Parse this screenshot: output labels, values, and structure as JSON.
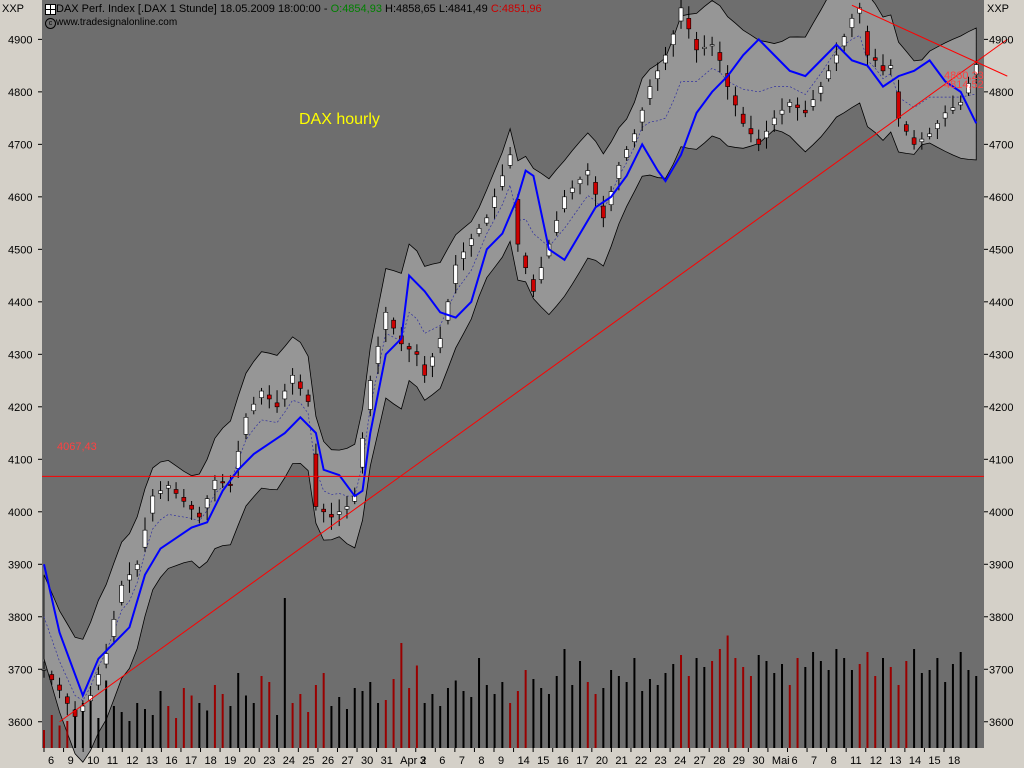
{
  "header": {
    "title": "DAX Perf. Index [.DAX  1 Stunde] 18.05.2009 18:00:00 - ",
    "open": "O:4854,93",
    "high": "H:4858,65",
    "low": "L:4841,49",
    "close": "C:4851,96",
    "source": "www.tradesignalonline.com",
    "source_icon": "copyright-icon",
    "axis_tag_left": "XXP",
    "axis_tag_right": "XXP"
  },
  "annotations": {
    "title_text": "DAX hourly",
    "level_label": "4067,43",
    "trend_label_1": "4860,23",
    "trend_label_2": "4814,52"
  },
  "colors": {
    "plot_background": "#6e6e6e",
    "band_fill": "#969696",
    "up_candle": "#ffffff",
    "down_candle": "#cc0000",
    "moving_average": "#0000ff",
    "trendline": "#ff0000",
    "annotation_text": "#ffff00"
  },
  "chart_data": {
    "type": "candlestick",
    "instrument": "DAX Perf. Index",
    "interval": "1 Stunde",
    "ylim": [
      3550,
      4975
    ],
    "yticks": [
      3600,
      3700,
      3800,
      3900,
      4000,
      4100,
      4200,
      4300,
      4400,
      4500,
      4600,
      4700,
      4800,
      4900
    ],
    "x_labels": [
      "6",
      "9",
      "10",
      "11",
      "12",
      "13",
      "16",
      "17",
      "18",
      "19",
      "20",
      "23",
      "24",
      "25",
      "26",
      "27",
      "30",
      "31",
      "Apr 2",
      "3",
      "6",
      "7",
      "8",
      "9",
      "14",
      "15",
      "16",
      "17",
      "20",
      "21",
      "22",
      "23",
      "24",
      "27",
      "28",
      "29",
      "30",
      "Mai",
      "6",
      "7",
      "8",
      "11",
      "12",
      "13",
      "14",
      "15",
      "18"
    ],
    "grid": false,
    "indicators": [
      "Bollinger bands",
      "moving average",
      "volume"
    ],
    "close_path": [
      [
        0,
        3700
      ],
      [
        2,
        3660
      ],
      [
        4,
        3610
      ],
      [
        6,
        3650
      ],
      [
        8,
        3730
      ],
      [
        10,
        3860
      ],
      [
        12,
        3900
      ],
      [
        14,
        4030
      ],
      [
        16,
        4050
      ],
      [
        18,
        4020
      ],
      [
        20,
        3990
      ],
      [
        22,
        4060
      ],
      [
        24,
        4050
      ],
      [
        26,
        4180
      ],
      [
        28,
        4230
      ],
      [
        30,
        4200
      ],
      [
        32,
        4260
      ],
      [
        34,
        4210
      ],
      [
        35,
        4010
      ],
      [
        37,
        3990
      ],
      [
        39,
        4010
      ],
      [
        40,
        4030
      ],
      [
        42,
        4250
      ],
      [
        44,
        4380
      ],
      [
        46,
        4320
      ],
      [
        48,
        4300
      ],
      [
        49,
        4260
      ],
      [
        51,
        4330
      ],
      [
        53,
        4470
      ],
      [
        55,
        4520
      ],
      [
        57,
        4560
      ],
      [
        59,
        4640
      ],
      [
        60,
        4680
      ],
      [
        61,
        4510
      ],
      [
        63,
        4420
      ],
      [
        65,
        4510
      ],
      [
        67,
        4600
      ],
      [
        70,
        4650
      ],
      [
        72,
        4560
      ],
      [
        74,
        4660
      ],
      [
        76,
        4720
      ],
      [
        78,
        4810
      ],
      [
        80,
        4870
      ],
      [
        81,
        4910
      ],
      [
        82,
        4960
      ],
      [
        84,
        4880
      ],
      [
        86,
        4890
      ],
      [
        87,
        4860
      ],
      [
        88,
        4810
      ],
      [
        90,
        4740
      ],
      [
        92,
        4700
      ],
      [
        94,
        4750
      ],
      [
        96,
        4780
      ],
      [
        98,
        4760
      ],
      [
        100,
        4810
      ],
      [
        102,
        4870
      ],
      [
        104,
        4940
      ],
      [
        105,
        4960
      ],
      [
        106,
        4870
      ],
      [
        107,
        4860
      ],
      [
        108,
        4840
      ],
      [
        109,
        4850
      ],
      [
        110,
        4750
      ],
      [
        112,
        4700
      ],
      [
        114,
        4720
      ],
      [
        116,
        4760
      ],
      [
        118,
        4780
      ],
      [
        120,
        4852
      ]
    ],
    "ma_path": [
      [
        0,
        3900
      ],
      [
        2,
        3770
      ],
      [
        5,
        3650
      ],
      [
        7,
        3720
      ],
      [
        9,
        3750
      ],
      [
        11,
        3780
      ],
      [
        13,
        3880
      ],
      [
        15,
        3930
      ],
      [
        17,
        3950
      ],
      [
        19,
        3970
      ],
      [
        21,
        3980
      ],
      [
        23,
        4040
      ],
      [
        25,
        4080
      ],
      [
        27,
        4110
      ],
      [
        29,
        4130
      ],
      [
        31,
        4150
      ],
      [
        33,
        4180
      ],
      [
        35,
        4150
      ],
      [
        36,
        4080
      ],
      [
        38,
        4070
      ],
      [
        40,
        4030
      ],
      [
        41,
        4040
      ],
      [
        42,
        4150
      ],
      [
        44,
        4300
      ],
      [
        46,
        4330
      ],
      [
        47,
        4450
      ],
      [
        49,
        4420
      ],
      [
        51,
        4380
      ],
      [
        53,
        4370
      ],
      [
        55,
        4400
      ],
      [
        57,
        4500
      ],
      [
        59,
        4530
      ],
      [
        61,
        4600
      ],
      [
        62,
        4650
      ],
      [
        63,
        4640
      ],
      [
        65,
        4500
      ],
      [
        67,
        4480
      ],
      [
        69,
        4530
      ],
      [
        71,
        4580
      ],
      [
        73,
        4600
      ],
      [
        75,
        4640
      ],
      [
        77,
        4700
      ],
      [
        79,
        4650
      ],
      [
        80,
        4630
      ],
      [
        82,
        4680
      ],
      [
        84,
        4760
      ],
      [
        86,
        4800
      ],
      [
        88,
        4830
      ],
      [
        90,
        4870
      ],
      [
        92,
        4900
      ],
      [
        94,
        4870
      ],
      [
        96,
        4840
      ],
      [
        98,
        4830
      ],
      [
        100,
        4860
      ],
      [
        102,
        4890
      ],
      [
        104,
        4860
      ],
      [
        106,
        4850
      ],
      [
        108,
        4810
      ],
      [
        110,
        4830
      ],
      [
        112,
        4840
      ],
      [
        114,
        4860
      ],
      [
        116,
        4820
      ],
      [
        118,
        4800
      ],
      [
        120,
        4740
      ]
    ],
    "band_width": 80,
    "volume": [
      12,
      22,
      15,
      18,
      26,
      30,
      35,
      20,
      45,
      28,
      24,
      18,
      30,
      26,
      22,
      38,
      28,
      20,
      40,
      35,
      30,
      25,
      42,
      36,
      28,
      50,
      35,
      30,
      48,
      44,
      22,
      100,
      30,
      36,
      24,
      42,
      50,
      28,
      34,
      26,
      40,
      38,
      44,
      30,
      32,
      46,
      70,
      40,
      55,
      30,
      36,
      28,
      40,
      45,
      38,
      34,
      60,
      42,
      36,
      44,
      30,
      38,
      52,
      46,
      40,
      36,
      48,
      66,
      42,
      58,
      44,
      36,
      40,
      52,
      48,
      44,
      60,
      38,
      46,
      42,
      50,
      56,
      62,
      48,
      60,
      54,
      58,
      66,
      75,
      60,
      54,
      48,
      62,
      58,
      50,
      56,
      42,
      60,
      54,
      64,
      58,
      52,
      66,
      60,
      52,
      56,
      64,
      48,
      60,
      54,
      42,
      58,
      66,
      50,
      52,
      60,
      44,
      56,
      64,
      52,
      48,
      58
    ],
    "horizontal_level": 4067.43,
    "trendline_up": [
      [
        2,
        3600
      ],
      [
        124,
        4900
      ]
    ],
    "trendline_down": [
      [
        104,
        4965
      ],
      [
        124,
        4830
      ]
    ]
  }
}
